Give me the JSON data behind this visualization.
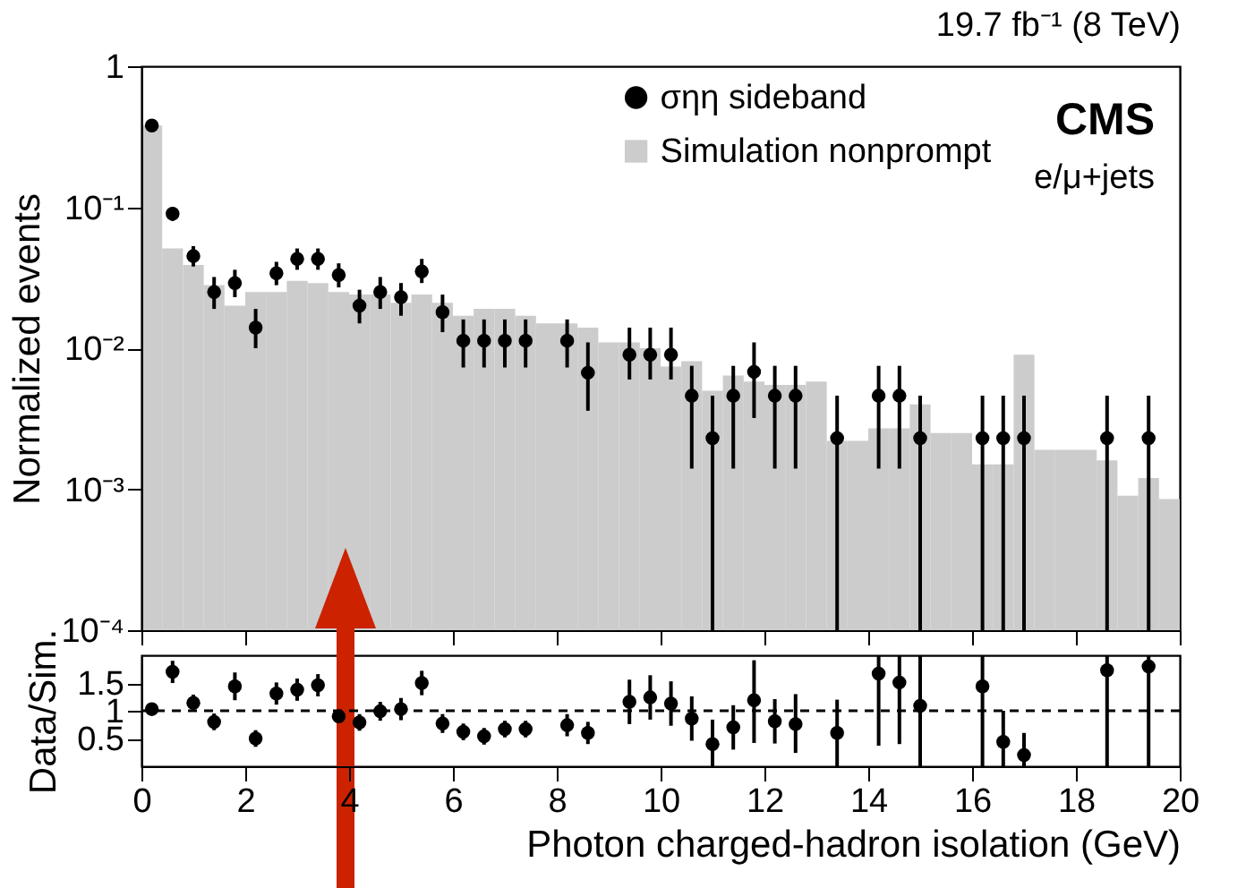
{
  "chart_data": [
    {
      "type": "histogram",
      "title": "19.7 fb⁻¹ (8 TeV)",
      "ylabel": "Normalized events",
      "log": "y",
      "grid": false,
      "legend": "top right",
      "tick_labels": "y",
      "xlim": [
        0,
        20
      ],
      "xticks": [
        0,
        2,
        4,
        6,
        8,
        10,
        12,
        14,
        16,
        18,
        20
      ],
      "ylim": [
        0.0001,
        1
      ],
      "yticks": [
        {
          "value": 0.0001,
          "label": "10⁻⁴"
        },
        {
          "value": 0.001,
          "label": "10⁻³"
        },
        {
          "value": 0.01,
          "label": "10⁻²"
        },
        {
          "value": 0.1,
          "label": "10⁻¹"
        },
        1
      ],
      "annotations": [
        "CMS",
        "e/μ+jets"
      ],
      "bins": [
        0,
        0.4,
        0.8,
        1.2,
        1.6,
        2,
        2.4,
        2.8,
        3.2,
        3.6,
        4,
        4.4,
        4.8,
        5.2,
        5.6,
        6,
        6.4,
        6.8,
        7.2,
        7.6,
        8,
        8.4,
        8.8,
        9.2,
        9.6,
        10,
        10.4,
        10.8,
        11.2,
        11.6,
        12,
        12.4,
        12.8,
        13.2,
        13.6,
        14,
        14.4,
        14.8,
        15.2,
        15.6,
        16,
        16.4,
        16.8,
        17.2,
        17.6,
        18,
        18.4,
        18.8,
        19.2,
        19.6,
        20
      ],
      "series": [
        {
          "name": "σηη sideband",
          "type": "scatter",
          "color": "#000000",
          "x": [
            0.2,
            0.6,
            1.0,
            1.4,
            1.8,
            2.2,
            2.6,
            3.0,
            3.4,
            3.8,
            4.2,
            4.6,
            5.0,
            5.4,
            5.8,
            6.2,
            6.6,
            7.0,
            7.4,
            8.2,
            8.6,
            9.4,
            9.8,
            10.2,
            10.6,
            11.0,
            11.4,
            11.8,
            12.2,
            12.6,
            13.4,
            14.2,
            14.6,
            15.0,
            16.2,
            16.6,
            17.0,
            18.6,
            19.4
          ],
          "values": [
            0.38,
            0.09,
            0.045,
            0.025,
            0.029,
            0.014,
            0.034,
            0.043,
            0.043,
            0.033,
            0.02,
            0.025,
            0.023,
            0.035,
            0.018,
            0.0113,
            0.0113,
            0.0113,
            0.0113,
            0.0113,
            0.0067,
            0.009,
            0.009,
            0.009,
            0.0046,
            0.0023,
            0.0046,
            0.0068,
            0.0046,
            0.0046,
            0.0023,
            0.0046,
            0.0046,
            0.0023,
            0.0023,
            0.0023,
            0.0023,
            0.0023,
            0.0023
          ],
          "errors": [
            [
              0.36,
              0.4
            ],
            [
              0.08,
              0.1
            ],
            [
              0.038,
              0.053
            ],
            [
              0.019,
              0.032
            ],
            [
              0.023,
              0.036
            ],
            [
              0.01,
              0.019
            ],
            [
              0.028,
              0.041
            ],
            [
              0.036,
              0.051
            ],
            [
              0.036,
              0.051
            ],
            [
              0.027,
              0.04
            ],
            [
              0.015,
              0.026
            ],
            [
              0.019,
              0.032
            ],
            [
              0.017,
              0.029
            ],
            [
              0.029,
              0.043
            ],
            [
              0.013,
              0.024
            ],
            [
              0.0073,
              0.016
            ],
            [
              0.0073,
              0.016
            ],
            [
              0.0073,
              0.016
            ],
            [
              0.0073,
              0.016
            ],
            [
              0.0073,
              0.016
            ],
            [
              0.0036,
              0.011
            ],
            [
              0.006,
              0.014
            ],
            [
              0.006,
              0.014
            ],
            [
              0.006,
              0.014
            ],
            [
              0.0014,
              0.0075
            ],
            [
              0.0001,
              0.0046
            ],
            [
              0.0014,
              0.0075
            ],
            [
              0.0032,
              0.011
            ],
            [
              0.0014,
              0.0075
            ],
            [
              0.0014,
              0.0075
            ],
            [
              0.0001,
              0.0046
            ],
            [
              0.0014,
              0.0075
            ],
            [
              0.0014,
              0.0075
            ],
            [
              0.0001,
              0.0046
            ],
            [
              0.0001,
              0.0046
            ],
            [
              0.0001,
              0.0046
            ],
            [
              0.0001,
              0.0046
            ],
            [
              0.0001,
              0.0046
            ],
            [
              0.0001,
              0.0046
            ]
          ]
        },
        {
          "name": "Simulation nonprompt",
          "type": "histogram",
          "color": "#cccccc",
          "values": [
            0.38,
            0.051,
            0.039,
            0.028,
            0.02,
            0.025,
            0.025,
            0.03,
            0.029,
            0.025,
            0.024,
            0.024,
            0.021,
            0.024,
            0.021,
            0.017,
            0.019,
            0.019,
            0.017,
            0.015,
            0.015,
            0.014,
            0.011,
            0.011,
            0.01,
            0.0074,
            0.0081,
            0.005,
            0.0064,
            0.0058,
            0.0055,
            0.0055,
            0.0058,
            0.0022,
            0.0022,
            0.0027,
            0.0027,
            0.004,
            0.0025,
            0.0025,
            0.0015,
            0.0015,
            0.009,
            0.0019,
            0.0019,
            0.0019,
            0.0016,
            0.0009,
            0.0012,
            0.00085
          ]
        }
      ]
    },
    {
      "type": "scatter",
      "xlabel": "Photon charged-hadron isolation (GeV)",
      "ylabel": "Data/Sim.",
      "grid": false,
      "xlim": [
        0,
        20
      ],
      "xticks": [
        0,
        2,
        4,
        6,
        8,
        10,
        12,
        14,
        16,
        18,
        20
      ],
      "ylim": [
        0,
        2
      ],
      "yticks": [
        0.5,
        1,
        1.5
      ],
      "ref_lines": [
        {
          "axis": "y",
          "value": 1,
          "color": "#000000",
          "line_style": "dashed"
        }
      ],
      "series": [
        {
          "color": "#000000",
          "x": [
            0.2,
            0.6,
            1.0,
            1.4,
            1.8,
            2.2,
            2.6,
            3.0,
            3.4,
            3.8,
            4.2,
            4.6,
            5.0,
            5.4,
            5.8,
            6.2,
            6.6,
            7.0,
            7.4,
            8.2,
            8.6,
            9.4,
            9.8,
            10.2,
            10.6,
            11.0,
            11.4,
            11.8,
            12.2,
            12.6,
            13.4,
            14.2,
            14.6,
            15.0,
            16.2,
            16.6,
            17.0,
            18.6,
            19.4
          ],
          "values": [
            1.03,
            1.7,
            1.14,
            0.8,
            1.44,
            0.5,
            1.31,
            1.38,
            1.46,
            0.9,
            0.79,
            0.99,
            1.03,
            1.5,
            0.77,
            0.62,
            0.54,
            0.67,
            0.67,
            0.74,
            0.6,
            1.16,
            1.24,
            1.13,
            0.86,
            0.4,
            0.7,
            1.19,
            0.81,
            0.76,
            0.6,
            1.67,
            1.51,
            1.09,
            1.44,
            0.44,
            0.2,
            1.73,
            1.8
          ],
          "errors": [
            0.05,
            0.2,
            0.15,
            0.15,
            0.25,
            0.15,
            0.2,
            0.2,
            0.2,
            0.15,
            0.15,
            0.17,
            0.2,
            0.22,
            0.17,
            0.15,
            0.15,
            0.15,
            0.15,
            0.2,
            0.2,
            0.4,
            0.4,
            0.4,
            0.4,
            [
              0,
              0.84
            ],
            0.4,
            [
              0.42,
              1.91
            ],
            0.4,
            [
              0.24,
              1.3
            ],
            [
              0,
              1.2
            ],
            [
              0.37,
              2
            ],
            [
              0.4,
              2
            ],
            [
              0,
              2
            ],
            [
              0,
              2
            ],
            [
              0,
              1
            ],
            [
              0,
              0.6
            ],
            [
              0,
              2
            ],
            [
              0,
              2
            ]
          ]
        }
      ]
    }
  ]
}
